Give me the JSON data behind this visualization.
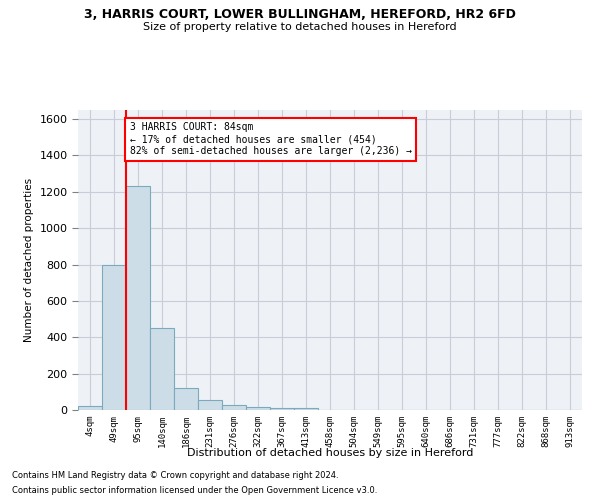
{
  "title1": "3, HARRIS COURT, LOWER BULLINGHAM, HEREFORD, HR2 6FD",
  "title2": "Size of property relative to detached houses in Hereford",
  "xlabel": "Distribution of detached houses by size in Hereford",
  "ylabel": "Number of detached properties",
  "bar_color": "#ccdde8",
  "bar_edge_color": "#7aaabb",
  "bin_labels": [
    "4sqm",
    "49sqm",
    "95sqm",
    "140sqm",
    "186sqm",
    "231sqm",
    "276sqm",
    "322sqm",
    "367sqm",
    "413sqm",
    "458sqm",
    "504sqm",
    "549sqm",
    "595sqm",
    "640sqm",
    "686sqm",
    "731sqm",
    "777sqm",
    "822sqm",
    "868sqm",
    "913sqm"
  ],
  "bar_heights": [
    20,
    800,
    1230,
    450,
    120,
    55,
    25,
    18,
    10,
    10,
    0,
    0,
    0,
    0,
    0,
    0,
    0,
    0,
    0,
    0,
    0
  ],
  "ylim": [
    0,
    1650
  ],
  "yticks": [
    0,
    200,
    400,
    600,
    800,
    1000,
    1200,
    1400,
    1600
  ],
  "vline_x_index": 1.5,
  "annotation_text": "3 HARRIS COURT: 84sqm\n← 17% of detached houses are smaller (454)\n82% of semi-detached houses are larger (2,236) →",
  "annotation_box_color": "white",
  "annotation_box_edge_color": "red",
  "vline_color": "red",
  "footer1": "Contains HM Land Registry data © Crown copyright and database right 2024.",
  "footer2": "Contains public sector information licensed under the Open Government Licence v3.0.",
  "background_color": "white",
  "axes_bg_color": "#eef2f7",
  "grid_color": "#c8cdd8"
}
